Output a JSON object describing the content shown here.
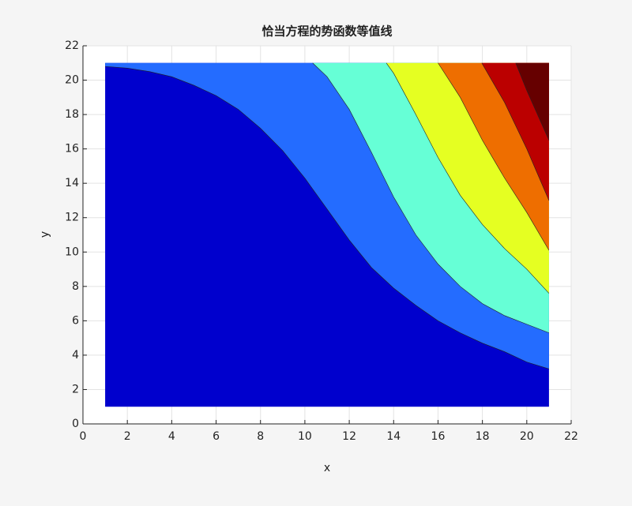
{
  "chart_data": {
    "type": "contourf",
    "title": "恰当方程的势函数等值线",
    "xlabel": "x",
    "ylabel": "y",
    "xlim": [
      0,
      22
    ],
    "ylim": [
      0,
      22
    ],
    "xticks": [
      0,
      2,
      4,
      6,
      8,
      10,
      12,
      14,
      16,
      18,
      20,
      22
    ],
    "yticks": [
      0,
      2,
      4,
      6,
      8,
      10,
      12,
      14,
      16,
      18,
      20,
      22
    ],
    "grid": true,
    "xrange": [
      1,
      21
    ],
    "yrange": [
      1,
      21
    ],
    "colors": [
      "#0000cd",
      "#246cff",
      "#66ffd6",
      "#e5ff22",
      "#ee6e00",
      "#bb0000",
      "#660000"
    ],
    "series": [
      {
        "x": [
          1,
          2,
          3,
          4,
          5,
          6,
          7,
          8,
          9,
          10,
          11,
          12,
          13,
          14,
          15,
          16,
          17,
          18,
          19,
          20,
          21
        ],
        "y": [
          20.8,
          20.7,
          20.5,
          20.2,
          19.7,
          19.1,
          18.3,
          17.2,
          15.9,
          14.3,
          12.5,
          10.7,
          9.1,
          7.9,
          6.9,
          6.0,
          5.3,
          4.7,
          4.2,
          3.6,
          3.2
        ]
      },
      {
        "x": [
          10.35,
          11,
          12,
          13,
          14,
          15,
          16,
          17,
          18,
          19,
          20,
          21
        ],
        "y": [
          21,
          20.2,
          18.3,
          15.8,
          13.2,
          11.0,
          9.3,
          8.0,
          7.0,
          6.3,
          5.8,
          5.3
        ]
      },
      {
        "x": [
          13.67,
          14,
          15,
          16,
          17,
          18,
          19,
          20,
          21
        ],
        "y": [
          21,
          20.4,
          18.0,
          15.5,
          13.3,
          11.6,
          10.2,
          9.0,
          7.6
        ]
      },
      {
        "x": [
          16,
          17,
          18,
          19,
          20,
          21
        ],
        "y": [
          21,
          19.0,
          16.5,
          14.3,
          12.3,
          10.1
        ]
      },
      {
        "x": [
          17.97,
          19,
          20,
          21
        ],
        "y": [
          21,
          18.7,
          16.0,
          13.0
        ]
      },
      {
        "x": [
          19.5,
          20,
          21
        ],
        "y": [
          21,
          19.4,
          16.5
        ]
      }
    ]
  }
}
